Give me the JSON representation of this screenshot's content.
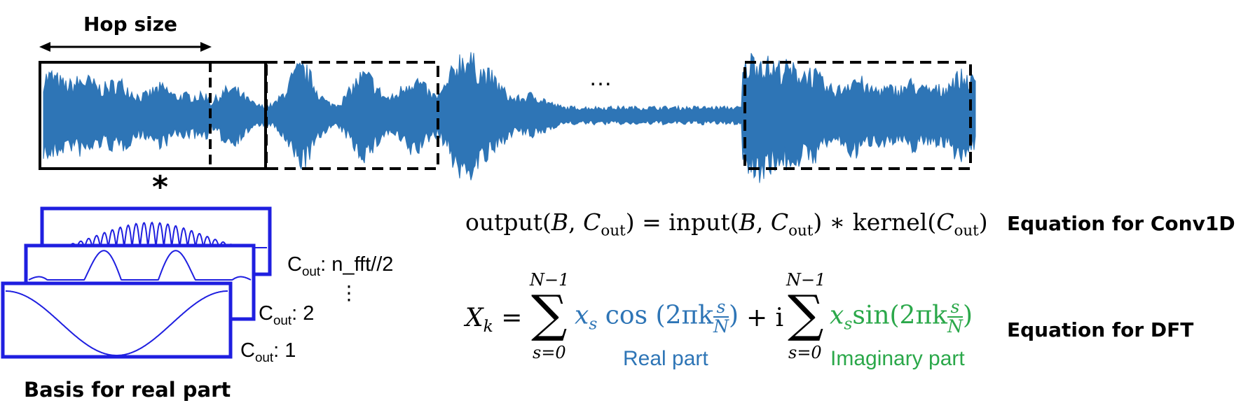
{
  "labels": {
    "hop_size": "Hop size",
    "star": "*",
    "dots": "…",
    "basis_caption": "Basis for real part",
    "c_out_text": "C",
    "c_out_sub": "out",
    "channels": [
      {
        "value": ": n_fft//2"
      },
      {
        "value": ": 2"
      },
      {
        "value": ": 1"
      }
    ],
    "vdots": "⋮"
  },
  "equations": {
    "conv1d": {
      "output": "output(",
      "B": "B",
      "comma": ", ",
      "C": "C",
      "sub": "out",
      "close": ")",
      "eq": " = ",
      "input": "input(",
      "conv": " ∗ ",
      "kernel": "kernel(",
      "caption": "Equation for Conv1D"
    },
    "dft": {
      "X": "X",
      "k": "k",
      "eq": " = ",
      "sum_upper": "N−1",
      "sum_lower": "s=0",
      "sigma": "∑",
      "xs": "x",
      "s": "s",
      "cos": " cos ",
      "lparen": "(",
      "rparen": ")",
      "two_pi_k": "2πk",
      "frac_num": "s",
      "frac_den": "N",
      "plus_i": " + i ",
      "sin": "sin(",
      "real_part": "Real part",
      "imag_part": "Imaginary part",
      "caption": "Equation for DFT"
    }
  },
  "colors": {
    "waveform": "#2E75B6",
    "basis": "#1F1FE0",
    "real": "#2E75B6",
    "imag": "#2BA84A"
  }
}
